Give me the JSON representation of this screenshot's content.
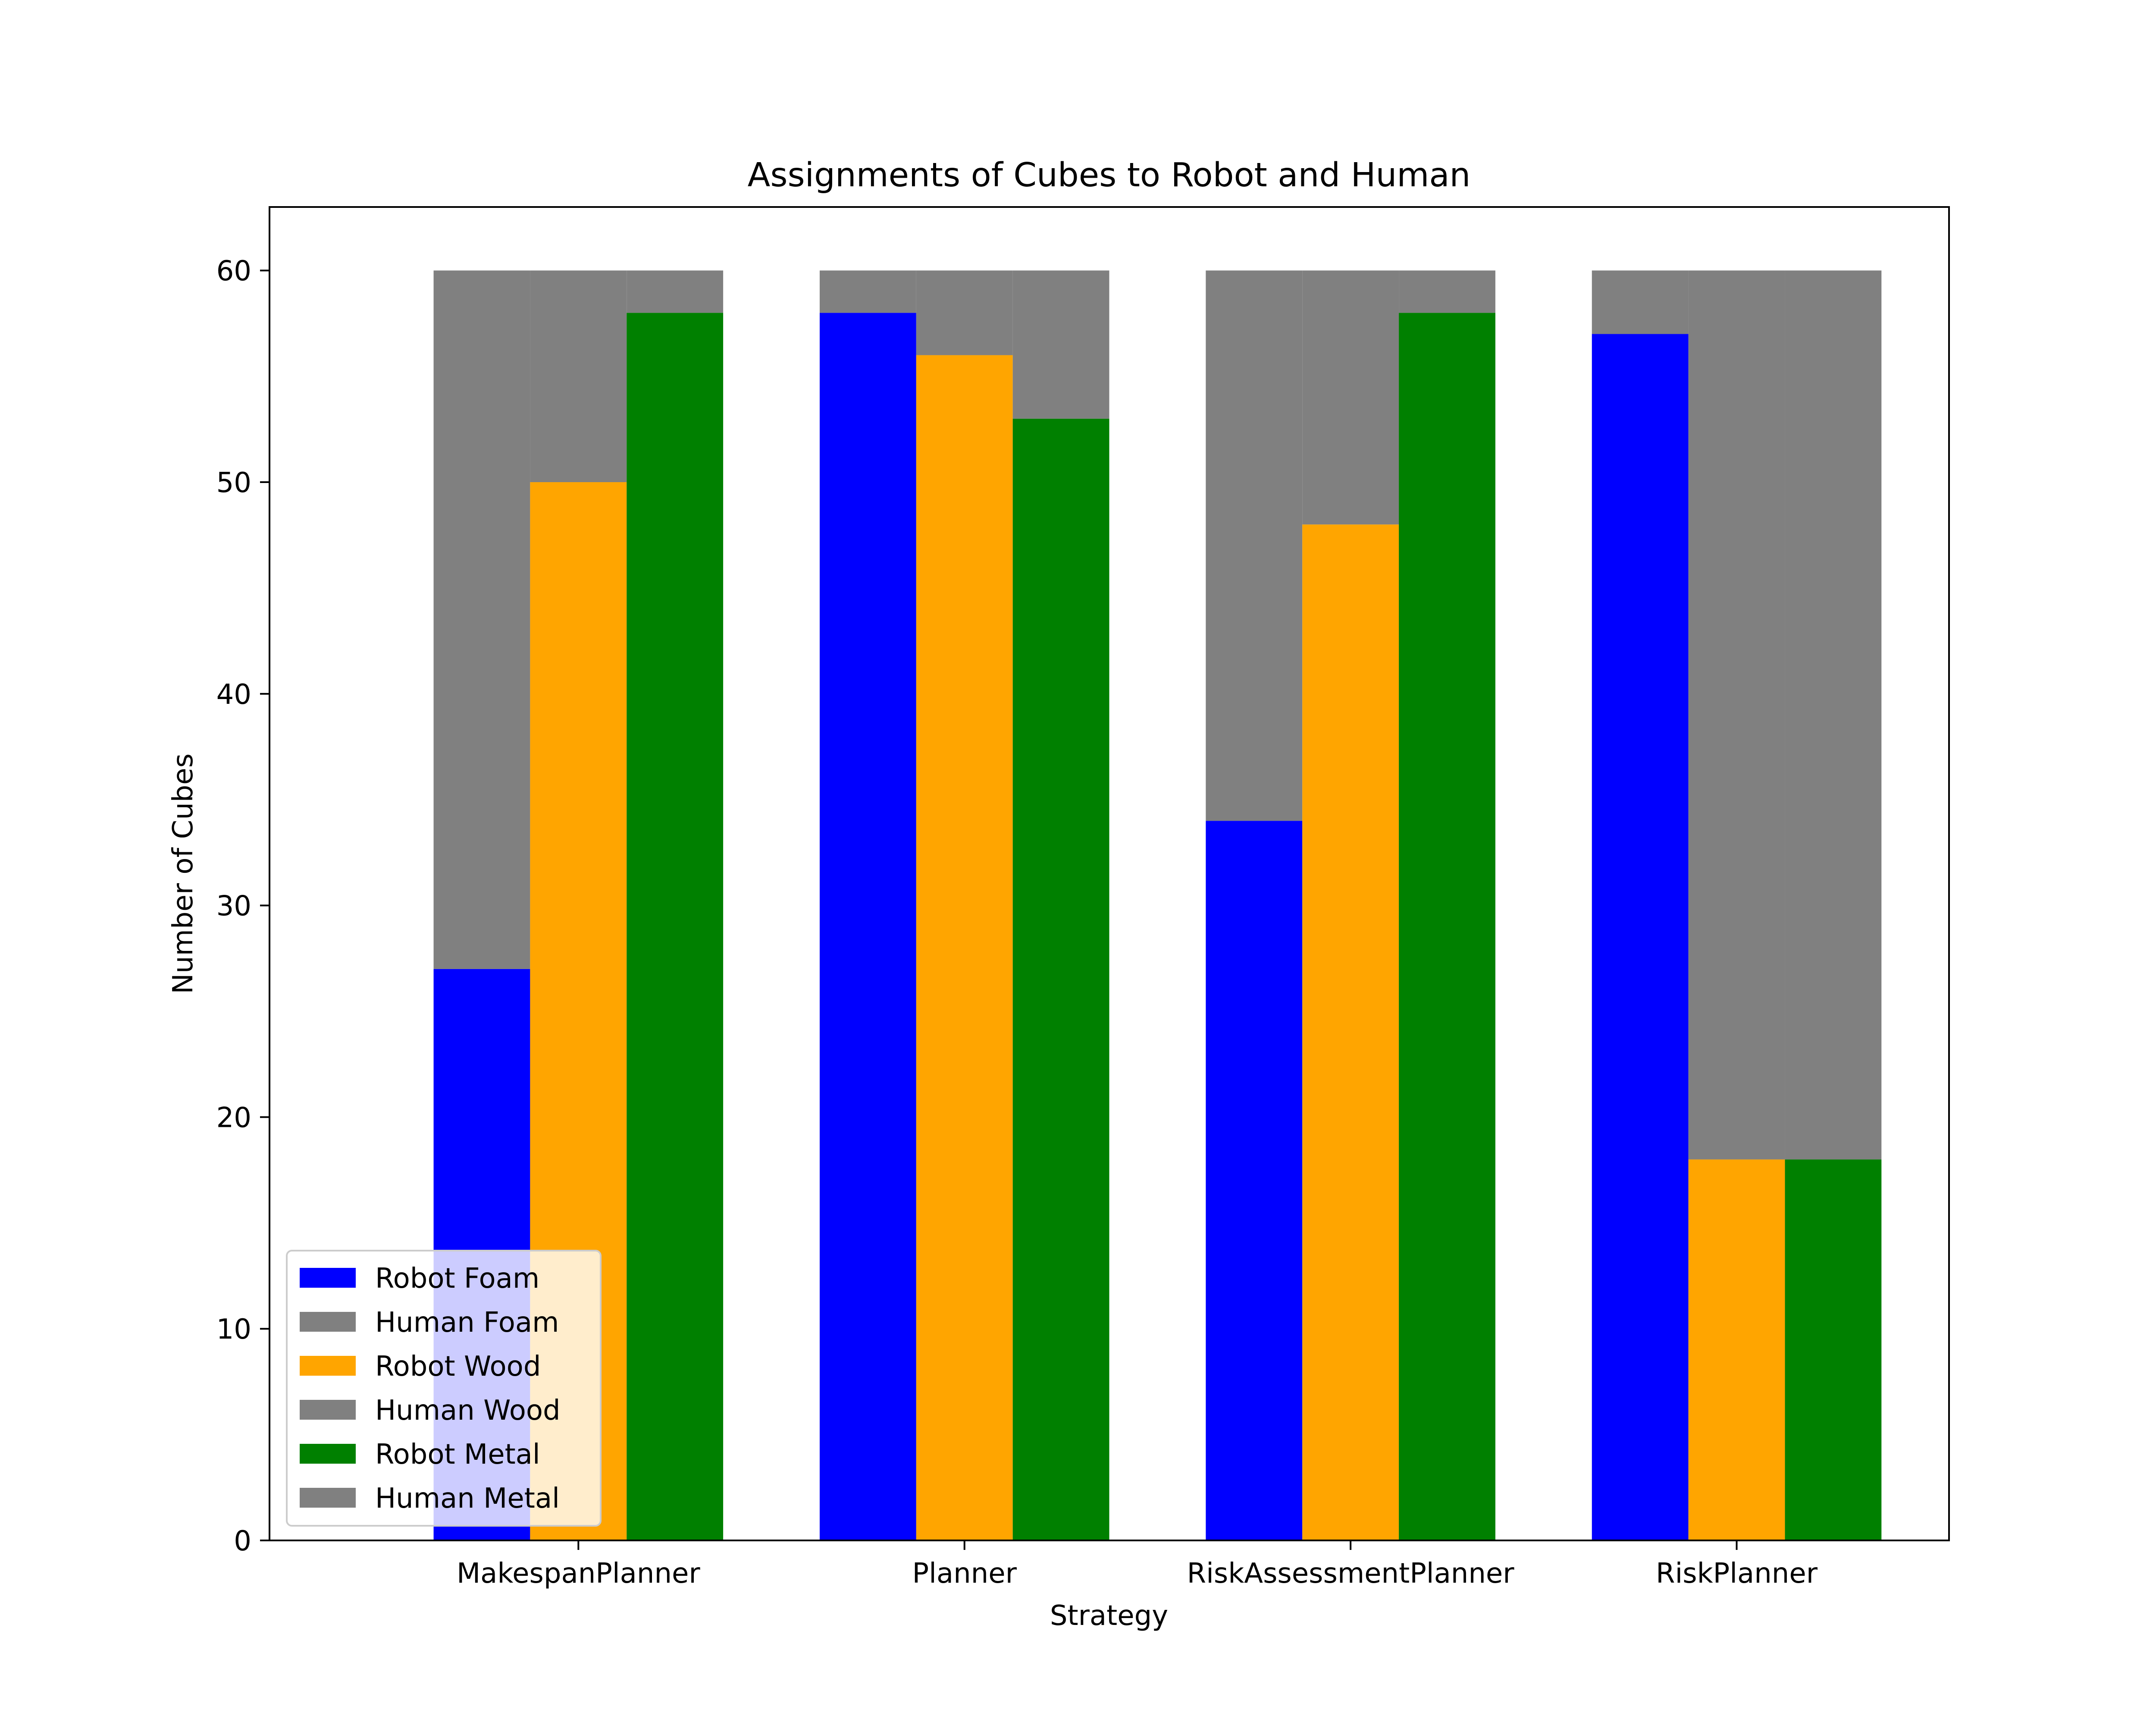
{
  "chart_data": {
    "type": "bar",
    "title": "Assignments of Cubes to Robot and Human",
    "xlabel": "Strategy",
    "ylabel": "Number of Cubes",
    "ylim": [
      0,
      63
    ],
    "yticks": [
      0,
      10,
      20,
      30,
      40,
      50,
      60
    ],
    "categories": [
      "MakespanPlanner",
      "Planner",
      "RiskAssessmentPlanner",
      "RiskPlanner"
    ],
    "total_per_material": 60,
    "grid": false,
    "legend_position": "lower-left",
    "series": [
      {
        "name": "Robot Foam",
        "material": "Foam",
        "role": "robot",
        "color": "#0000ff",
        "values": [
          27,
          58,
          34,
          57
        ]
      },
      {
        "name": "Human Foam",
        "material": "Foam",
        "role": "human",
        "color": "#808080",
        "values": [
          33,
          2,
          26,
          3
        ]
      },
      {
        "name": "Robot Wood",
        "material": "Wood",
        "role": "robot",
        "color": "#ffa500",
        "values": [
          50,
          56,
          48,
          18
        ]
      },
      {
        "name": "Human Wood",
        "material": "Wood",
        "role": "human",
        "color": "#808080",
        "values": [
          10,
          4,
          12,
          42
        ]
      },
      {
        "name": "Robot Metal",
        "material": "Metal",
        "role": "robot",
        "color": "#008000",
        "values": [
          58,
          53,
          58,
          18
        ]
      },
      {
        "name": "Human Metal",
        "material": "Metal",
        "role": "human",
        "color": "#808080",
        "values": [
          2,
          7,
          2,
          42
        ]
      }
    ]
  }
}
